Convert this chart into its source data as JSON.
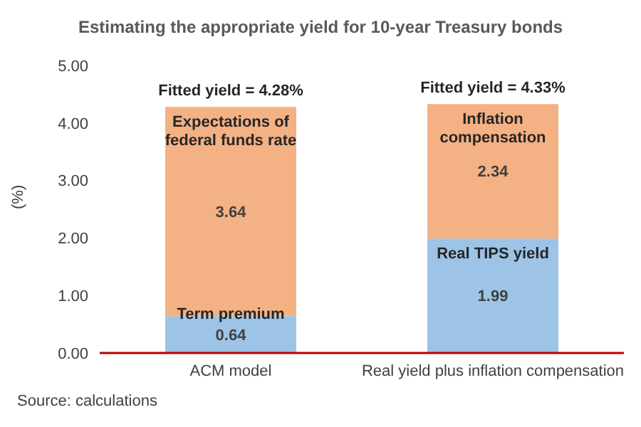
{
  "chart_data": {
    "type": "bar",
    "title": "Estimating the appropriate yield for 10-year Treasury bonds",
    "ylabel": "(%)",
    "categories": [
      "ACM model",
      "Real yield plus inflation compensation"
    ],
    "stacked": true,
    "series": [
      {
        "color": "#9dc3e6",
        "values": [
          0.64,
          1.99
        ]
      },
      {
        "color": "#f4b183",
        "values": [
          3.64,
          2.34
        ]
      }
    ],
    "data_labels": true,
    "ylim": [
      0,
      5
    ],
    "yticks": [
      {
        "value": 0,
        "label": "0.00"
      },
      {
        "value": 1,
        "label": "1.00"
      },
      {
        "value": 2,
        "label": "2.00"
      },
      {
        "value": 3,
        "label": "3.00"
      },
      {
        "value": 4,
        "label": "4.00"
      },
      {
        "value": 5,
        "label": "5.00"
      }
    ],
    "grid": false,
    "legend": false,
    "annotations": [
      {
        "text": "Fitted yield = 4.28%",
        "x": "ACM model",
        "y": 4.28
      },
      {
        "text": "Fitted yield = 4.33%",
        "x": "Real yield plus inflation compensation",
        "y": 4.33
      },
      {
        "text": "Expectations of\nfederal funds rate",
        "x": "ACM model",
        "y": 4.28
      },
      {
        "text": "Term premium",
        "x": "ACM model",
        "y": 0.64
      },
      {
        "text": "Inflation\ncompensation",
        "x": "Real yield plus inflation compensation",
        "y": 4.33
      },
      {
        "text": "Real TIPS yield",
        "x": "Real yield plus inflation compensation",
        "y": 1.99
      },
      "Source: calculations"
    ]
  }
}
